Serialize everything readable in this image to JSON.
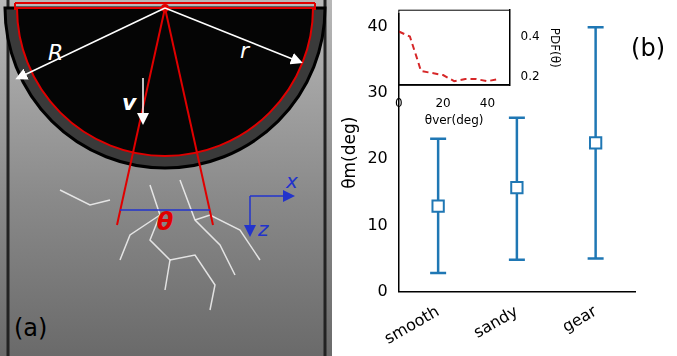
{
  "panel_a": {
    "label": "(a)",
    "labels": {
      "R": "R",
      "r": "r",
      "v": "v",
      "theta": "θ",
      "x": "x",
      "z": "z"
    }
  },
  "chart_data": [
    {
      "type": "scatter",
      "categories": [
        "smooth",
        "sandy",
        "gear"
      ],
      "values": [
        12.9,
        15.7,
        22.5
      ],
      "error_min": [
        2.8,
        4.8,
        5.0
      ],
      "error_max": [
        23.1,
        26.3,
        40.0
      ],
      "color": "#1f77b4",
      "marker": "square",
      "y_label": "θm(deg)",
      "ylim": [
        0,
        42
      ],
      "yticks": [
        0,
        10,
        20,
        30,
        40
      ],
      "grid": false,
      "annotations": [
        "(b)"
      ]
    },
    {
      "type": "line",
      "x": [
        0,
        3,
        5,
        8,
        10,
        15,
        20,
        25,
        30,
        35,
        40,
        45
      ],
      "values": [
        0.425,
        0.41,
        0.4,
        0.3,
        0.23,
        0.22,
        0.21,
        0.18,
        0.19,
        0.19,
        0.18,
        0.19
      ],
      "color": "#d62728",
      "line_style": "dashed",
      "x_label": "θver(deg)",
      "y_label": "PDF(θ)",
      "xlim": [
        0,
        50
      ],
      "xticks": [
        0,
        20,
        40
      ],
      "ylim": [
        0.16,
        0.53
      ],
      "yticks": [
        0.2,
        0.4
      ],
      "grid": false
    }
  ]
}
